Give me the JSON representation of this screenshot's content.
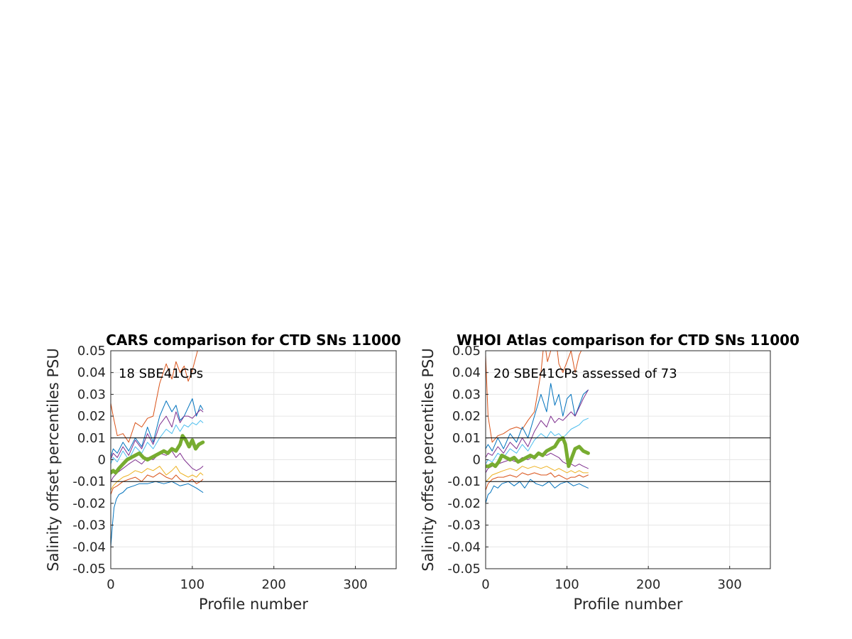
{
  "chart_data": [
    {
      "type": "line",
      "title": "CARS comparison for CTD SNs 11000",
      "xlabel": "Profile number",
      "ylabel": "Salinity offset percentiles PSU",
      "xlim": [
        0,
        350
      ],
      "ylim": [
        -0.05,
        0.05
      ],
      "xticks": [
        "0",
        "100",
        "200",
        "300"
      ],
      "xtick_values": [
        0,
        100,
        200,
        300
      ],
      "yticks": [
        "0.05",
        "0.04",
        "0.03",
        "0.02",
        "0.01",
        "0",
        "-0.01",
        "-0.02",
        "-0.03",
        "-0.04",
        "-0.05"
      ],
      "ytick_values": [
        0.05,
        0.04,
        0.03,
        0.02,
        0.01,
        0,
        -0.01,
        -0.02,
        -0.03,
        -0.04,
        -0.05
      ],
      "grid": true,
      "annotation": "18 SBE41CPs",
      "reference_lines": [
        0.01,
        -0.01
      ],
      "series": [
        {
          "color": "#D95319",
          "width": 1,
          "x": [
            0,
            3,
            8,
            15,
            22,
            30,
            38,
            45,
            52,
            60,
            68,
            75,
            80,
            85,
            90,
            95,
            100,
            105,
            110,
            113
          ],
          "y": [
            0.026,
            0.02,
            0.011,
            0.012,
            0.008,
            0.017,
            0.015,
            0.019,
            0.02,
            0.035,
            0.044,
            0.037,
            0.045,
            0.04,
            0.043,
            0.036,
            0.041,
            0.048,
            0.055,
            0.056
          ]
        },
        {
          "color": "#0072BD",
          "width": 1,
          "x": [
            0,
            3,
            8,
            15,
            22,
            30,
            38,
            45,
            52,
            60,
            68,
            75,
            80,
            85,
            90,
            95,
            100,
            105,
            110,
            113
          ],
          "y": [
            0.001,
            0.005,
            0.003,
            0.008,
            0.004,
            0.01,
            0.006,
            0.015,
            0.008,
            0.02,
            0.027,
            0.022,
            0.025,
            0.018,
            0.02,
            0.024,
            0.028,
            0.02,
            0.025,
            0.023
          ]
        },
        {
          "color": "#7E2F8E",
          "width": 1,
          "x": [
            0,
            3,
            8,
            15,
            22,
            30,
            38,
            45,
            52,
            60,
            68,
            75,
            80,
            85,
            90,
            95,
            100,
            105,
            110,
            113
          ],
          "y": [
            0.0,
            0.003,
            0.001,
            0.006,
            0.002,
            0.009,
            0.005,
            0.012,
            0.007,
            0.016,
            0.02,
            0.015,
            0.022,
            0.017,
            0.02,
            0.02,
            0.019,
            0.021,
            0.023,
            0.022
          ]
        },
        {
          "color": "#4DBEEE",
          "width": 1,
          "x": [
            0,
            3,
            8,
            15,
            22,
            30,
            38,
            45,
            52,
            60,
            68,
            75,
            80,
            85,
            90,
            95,
            100,
            105,
            110,
            113
          ],
          "y": [
            -0.002,
            0.001,
            -0.001,
            0.004,
            0.0,
            0.006,
            0.003,
            0.008,
            0.005,
            0.01,
            0.014,
            0.012,
            0.016,
            0.013,
            0.016,
            0.015,
            0.017,
            0.016,
            0.018,
            0.017
          ]
        },
        {
          "color": "#7E2F8E",
          "width": 1,
          "x": [
            0,
            3,
            8,
            15,
            22,
            30,
            38,
            45,
            52,
            60,
            68,
            75,
            80,
            85,
            90,
            95,
            100,
            105,
            110,
            113
          ],
          "y": [
            -0.01,
            -0.008,
            -0.006,
            -0.004,
            -0.002,
            0.0,
            -0.002,
            0.001,
            0.0,
            0.003,
            0.002,
            0.004,
            0.001,
            0.003,
            0.0,
            -0.002,
            -0.004,
            -0.005,
            -0.004,
            -0.003
          ]
        },
        {
          "color": "#EDB120",
          "width": 1,
          "x": [
            0,
            3,
            8,
            15,
            22,
            30,
            38,
            45,
            52,
            60,
            68,
            75,
            80,
            85,
            90,
            95,
            100,
            105,
            110,
            113
          ],
          "y": [
            -0.014,
            -0.012,
            -0.01,
            -0.008,
            -0.007,
            -0.005,
            -0.006,
            -0.004,
            -0.005,
            -0.003,
            -0.007,
            -0.005,
            -0.003,
            -0.006,
            -0.007,
            -0.008,
            -0.007,
            -0.008,
            -0.006,
            -0.007
          ]
        },
        {
          "color": "#D95319",
          "width": 1,
          "x": [
            0,
            3,
            8,
            15,
            22,
            30,
            38,
            45,
            52,
            60,
            68,
            75,
            80,
            85,
            90,
            95,
            100,
            105,
            110,
            113
          ],
          "y": [
            -0.016,
            -0.013,
            -0.012,
            -0.01,
            -0.009,
            -0.008,
            -0.01,
            -0.007,
            -0.008,
            -0.006,
            -0.008,
            -0.009,
            -0.007,
            -0.009,
            -0.01,
            -0.01,
            -0.009,
            -0.011,
            -0.01,
            -0.009
          ]
        },
        {
          "color": "#0072BD",
          "width": 1,
          "x": [
            0,
            2,
            4,
            7,
            10,
            15,
            20,
            28,
            35,
            45,
            55,
            65,
            75,
            85,
            95,
            105,
            113
          ],
          "y": [
            -0.04,
            -0.03,
            -0.022,
            -0.018,
            -0.016,
            -0.015,
            -0.013,
            -0.012,
            -0.011,
            -0.011,
            -0.01,
            -0.011,
            -0.01,
            -0.012,
            -0.011,
            -0.013,
            -0.015
          ]
        },
        {
          "color": "#77AC30",
          "width": 5,
          "x": [
            0,
            3,
            6,
            10,
            15,
            20,
            25,
            30,
            35,
            40,
            45,
            50,
            55,
            60,
            65,
            70,
            75,
            80,
            85,
            88,
            92,
            96,
            100,
            104,
            108,
            113
          ],
          "y": [
            -0.006,
            -0.005,
            -0.006,
            -0.004,
            -0.002,
            0.0,
            0.001,
            0.002,
            0.003,
            0.001,
            0.0,
            0.001,
            0.002,
            0.003,
            0.004,
            0.003,
            0.005,
            0.004,
            0.007,
            0.011,
            0.009,
            0.006,
            0.009,
            0.005,
            0.007,
            0.008
          ]
        }
      ]
    },
    {
      "type": "line",
      "title": "WHOI Atlas comparison for CTD SNs 11000",
      "xlabel": "Profile number",
      "ylabel": "Salinity offset percentiles PSU",
      "xlim": [
        0,
        350
      ],
      "ylim": [
        -0.05,
        0.05
      ],
      "xticks": [
        "0",
        "100",
        "200",
        "300"
      ],
      "xtick_values": [
        0,
        100,
        200,
        300
      ],
      "yticks": [
        "0.05",
        "0.04",
        "0.03",
        "0.02",
        "0.01",
        "0",
        "-0.01",
        "-0.02",
        "-0.03",
        "-0.04",
        "-0.05"
      ],
      "ytick_values": [
        0.05,
        0.04,
        0.03,
        0.02,
        0.01,
        0,
        -0.01,
        -0.02,
        -0.03,
        -0.04,
        -0.05
      ],
      "grid": true,
      "annotation": "20 SBE41CPs assessed of 73",
      "reference_lines": [
        0.01,
        -0.01
      ],
      "series": [
        {
          "color": "#D95319",
          "width": 1,
          "x": [
            0,
            3,
            8,
            15,
            22,
            30,
            38,
            45,
            52,
            60,
            68,
            72,
            76,
            80,
            85,
            90,
            95,
            100,
            105,
            110,
            115,
            120,
            126
          ],
          "y": [
            0.048,
            0.02,
            0.008,
            0.011,
            0.012,
            0.014,
            0.015,
            0.014,
            0.018,
            0.022,
            0.04,
            0.055,
            0.045,
            0.05,
            0.06,
            0.044,
            0.04,
            0.045,
            0.05,
            0.04,
            0.048,
            0.052,
            0.06
          ]
        },
        {
          "color": "#0072BD",
          "width": 1,
          "x": [
            0,
            3,
            8,
            15,
            22,
            30,
            38,
            45,
            52,
            60,
            68,
            75,
            80,
            85,
            90,
            95,
            100,
            105,
            110,
            115,
            120,
            126
          ],
          "y": [
            0.005,
            0.007,
            0.004,
            0.01,
            0.005,
            0.012,
            0.008,
            0.015,
            0.01,
            0.02,
            0.03,
            0.022,
            0.035,
            0.025,
            0.03,
            0.02,
            0.028,
            0.03,
            0.02,
            0.025,
            0.03,
            0.032
          ]
        },
        {
          "color": "#7E2F8E",
          "width": 1,
          "x": [
            0,
            3,
            8,
            15,
            22,
            30,
            38,
            45,
            52,
            60,
            68,
            75,
            80,
            85,
            90,
            95,
            100,
            105,
            110,
            115,
            120,
            126
          ],
          "y": [
            0.001,
            0.003,
            0.002,
            0.006,
            0.003,
            0.008,
            0.005,
            0.01,
            0.006,
            0.013,
            0.018,
            0.015,
            0.02,
            0.017,
            0.019,
            0.018,
            0.02,
            0.022,
            0.02,
            0.024,
            0.028,
            0.032
          ]
        },
        {
          "color": "#4DBEEE",
          "width": 1,
          "x": [
            0,
            3,
            8,
            15,
            22,
            30,
            38,
            45,
            52,
            60,
            68,
            75,
            80,
            85,
            90,
            95,
            100,
            105,
            110,
            115,
            120,
            126
          ],
          "y": [
            -0.002,
            0.0,
            -0.001,
            0.003,
            0.001,
            0.005,
            0.003,
            0.007,
            0.004,
            0.009,
            0.012,
            0.01,
            0.013,
            0.011,
            0.012,
            0.01,
            0.012,
            0.014,
            0.015,
            0.016,
            0.018,
            0.019
          ]
        },
        {
          "color": "#7E2F8E",
          "width": 1,
          "x": [
            0,
            3,
            8,
            15,
            22,
            30,
            38,
            45,
            52,
            60,
            68,
            75,
            80,
            85,
            90,
            95,
            100,
            105,
            110,
            115,
            120,
            126
          ],
          "y": [
            -0.006,
            -0.004,
            -0.003,
            -0.002,
            -0.001,
            0.0,
            -0.001,
            0.001,
            0.0,
            0.002,
            0.003,
            0.002,
            0.003,
            0.002,
            0.001,
            -0.001,
            -0.002,
            -0.002,
            -0.003,
            -0.002,
            -0.003,
            -0.004
          ]
        },
        {
          "color": "#EDB120",
          "width": 1,
          "x": [
            0,
            3,
            8,
            15,
            22,
            30,
            38,
            45,
            52,
            60,
            68,
            75,
            80,
            85,
            90,
            95,
            100,
            105,
            110,
            115,
            120,
            126
          ],
          "y": [
            -0.01,
            -0.009,
            -0.007,
            -0.006,
            -0.005,
            -0.004,
            -0.005,
            -0.003,
            -0.004,
            -0.003,
            -0.004,
            -0.003,
            -0.004,
            -0.005,
            -0.004,
            -0.005,
            -0.006,
            -0.005,
            -0.006,
            -0.005,
            -0.006,
            -0.006
          ]
        },
        {
          "color": "#D95319",
          "width": 1,
          "x": [
            0,
            3,
            8,
            15,
            22,
            30,
            38,
            45,
            52,
            60,
            68,
            75,
            80,
            85,
            90,
            95,
            100,
            105,
            110,
            115,
            120,
            126
          ],
          "y": [
            -0.014,
            -0.011,
            -0.009,
            -0.008,
            -0.008,
            -0.007,
            -0.008,
            -0.006,
            -0.007,
            -0.006,
            -0.007,
            -0.007,
            -0.006,
            -0.008,
            -0.007,
            -0.008,
            -0.009,
            -0.008,
            -0.008,
            -0.007,
            -0.008,
            -0.007
          ]
        },
        {
          "color": "#0072BD",
          "width": 1,
          "x": [
            0,
            3,
            6,
            10,
            15,
            20,
            28,
            35,
            42,
            48,
            55,
            62,
            70,
            78,
            85,
            92,
            100,
            108,
            115,
            120,
            126
          ],
          "y": [
            -0.02,
            -0.016,
            -0.015,
            -0.012,
            -0.013,
            -0.011,
            -0.01,
            -0.012,
            -0.01,
            -0.013,
            -0.009,
            -0.011,
            -0.012,
            -0.01,
            -0.013,
            -0.011,
            -0.01,
            -0.012,
            -0.011,
            -0.012,
            -0.013
          ]
        },
        {
          "color": "#77AC30",
          "width": 5,
          "x": [
            0,
            4,
            8,
            12,
            16,
            20,
            25,
            30,
            35,
            40,
            45,
            50,
            55,
            60,
            65,
            70,
            75,
            80,
            85,
            90,
            95,
            98,
            102,
            106,
            110,
            115,
            120,
            126
          ],
          "y": [
            -0.003,
            -0.003,
            -0.002,
            -0.003,
            -0.001,
            0.002,
            0.001,
            0.0,
            0.001,
            -0.001,
            0.0,
            0.001,
            0.002,
            0.001,
            0.003,
            0.002,
            0.004,
            0.005,
            0.006,
            0.009,
            0.01,
            0.007,
            -0.003,
            0.001,
            0.005,
            0.006,
            0.004,
            0.003
          ]
        }
      ]
    }
  ]
}
